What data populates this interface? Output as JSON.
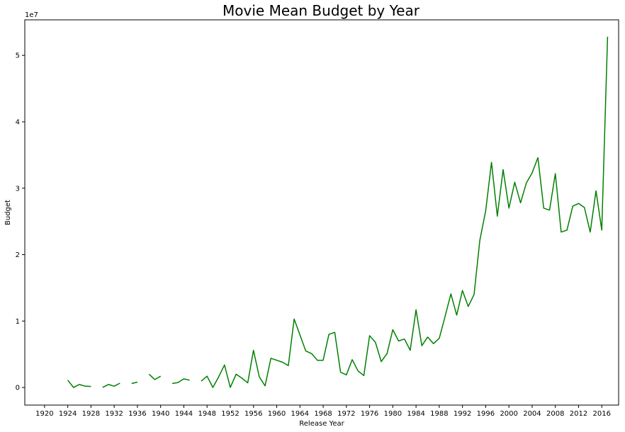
{
  "chart_data": {
    "type": "line",
    "title": "Movie Mean Budget by Year",
    "xlabel": "Release Year",
    "ylabel": "Budget",
    "y_offset_label": "1e7",
    "xlim": [
      1916.6,
      2018.9
    ],
    "ylim": [
      -2650000,
      55350000
    ],
    "x_ticks": [
      1920,
      1924,
      1928,
      1932,
      1936,
      1940,
      1944,
      1948,
      1952,
      1956,
      1960,
      1964,
      1968,
      1972,
      1976,
      1980,
      1984,
      1988,
      1992,
      1996,
      2000,
      2004,
      2008,
      2012,
      2016
    ],
    "x_tick_labels": [
      "1920",
      "1924",
      "1928",
      "1932",
      "1936",
      "1940",
      "1944",
      "1948",
      "1952",
      "1956",
      "1960",
      "1964",
      "1968",
      "1972",
      "1976",
      "1980",
      "1984",
      "1988",
      "1992",
      "1996",
      "2000",
      "2004",
      "2008",
      "2012",
      "2016"
    ],
    "y_ticks": [
      0,
      10000000,
      20000000,
      30000000,
      40000000,
      50000000
    ],
    "y_tick_labels": [
      "0",
      "1",
      "2",
      "3",
      "4",
      "5"
    ],
    "grid": false,
    "legend": "none",
    "line_color": "#008000",
    "series": [
      {
        "x": [
          1916,
          1917,
          1918,
          1919,
          1920,
          1921,
          1922,
          1923,
          1924,
          1925,
          1926,
          1927,
          1928,
          1929,
          1930,
          1931,
          1932,
          1933,
          1934,
          1935,
          1936,
          1937,
          1938,
          1939,
          1940,
          1941,
          1942,
          1943,
          1944,
          1945,
          1946,
          1947,
          1948,
          1949,
          1950,
          1951,
          1952,
          1953,
          1954,
          1955,
          1956,
          1957,
          1958,
          1959,
          1960,
          1961,
          1962,
          1963,
          1964,
          1965,
          1966,
          1967,
          1968,
          1969,
          1970,
          1971,
          1972,
          1973,
          1974,
          1975,
          1976,
          1977,
          1978,
          1979,
          1980,
          1981,
          1982,
          1983,
          1984,
          1985,
          1986,
          1987,
          1988,
          1989,
          1990,
          1991,
          1992,
          1993,
          1994,
          1995,
          1996,
          1997,
          1998,
          1999,
          2000,
          2001,
          2002,
          2003,
          2004,
          2005,
          2006,
          2007,
          2008,
          2009,
          2010,
          2011,
          2012,
          2013,
          2014,
          2015,
          2016,
          2017
        ],
        "y": [
          null,
          null,
          null,
          null,
          null,
          null,
          null,
          null,
          1100000,
          0,
          450000,
          200000,
          150000,
          null,
          0,
          450000,
          200000,
          650000,
          null,
          600000,
          800000,
          null,
          2000000,
          1200000,
          1700000,
          null,
          600000,
          750000,
          1300000,
          1100000,
          null,
          950000,
          1700000,
          0,
          1600000,
          3400000,
          0,
          2000000,
          1400000,
          700000,
          5600000,
          1600000,
          250000,
          4400000,
          4100000,
          3800000,
          3300000,
          10300000,
          7900000,
          5500000,
          5100000,
          4100000,
          4100000,
          8000000,
          8300000,
          2300000,
          1900000,
          4200000,
          2500000,
          1800000,
          7800000,
          6800000,
          3900000,
          5100000,
          8700000,
          7000000,
          7300000,
          5600000,
          11700000,
          6300000,
          7600000,
          6600000,
          7400000,
          10700000,
          14100000,
          10900000,
          14600000,
          12200000,
          14000000,
          22200000,
          26600000,
          33900000,
          25800000,
          32800000,
          27000000,
          30900000,
          27800000,
          30800000,
          32300000,
          34600000,
          27000000,
          26700000,
          32200000,
          23400000,
          23700000,
          27300000,
          27700000,
          27100000,
          23400000,
          29600000,
          23700000,
          52800000
        ]
      }
    ]
  }
}
